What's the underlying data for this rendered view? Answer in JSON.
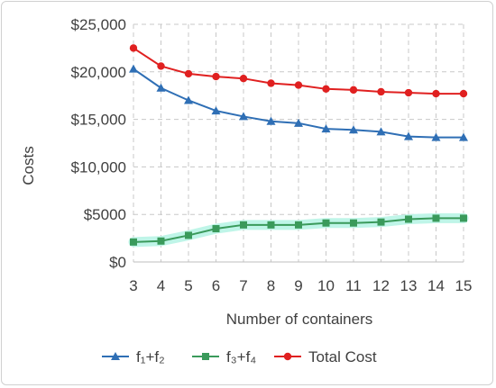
{
  "chart_data": {
    "type": "line",
    "title": "",
    "xlabel": "Number of containers",
    "ylabel": "Costs",
    "x": [
      3,
      4,
      5,
      6,
      7,
      8,
      9,
      10,
      11,
      12,
      13,
      14,
      15
    ],
    "ylim": [
      0,
      25000
    ],
    "yticks": [
      0,
      5000,
      10000,
      15000,
      20000,
      25000
    ],
    "ytick_labels": [
      "$0",
      "$5000",
      "$10,000",
      "$15,000",
      "$20,000",
      "$25,000"
    ],
    "grid": true,
    "legend_position": "bottom",
    "series": [
      {
        "name": "f₁+f₂",
        "color": "#2f6fb5",
        "marker": "triangle",
        "values": [
          20300,
          18300,
          17000,
          15900,
          15300,
          14800,
          14600,
          14000,
          13900,
          13700,
          13200,
          13100,
          13100
        ]
      },
      {
        "name": "f₃+f₄",
        "color": "#3a9a5b",
        "marker": "square",
        "values": [
          2100,
          2200,
          2800,
          3500,
          3900,
          3900,
          3900,
          4100,
          4100,
          4200,
          4500,
          4600,
          4600
        ]
      },
      {
        "name": "Total Cost",
        "color": "#e02020",
        "marker": "circle",
        "values": [
          22500,
          20600,
          19800,
          19500,
          19300,
          18800,
          18600,
          18200,
          18100,
          17900,
          17800,
          17700,
          17700
        ]
      }
    ]
  }
}
